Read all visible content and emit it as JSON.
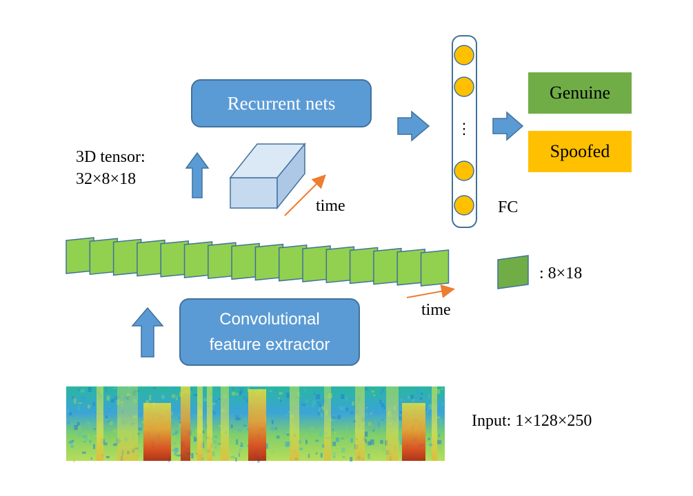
{
  "recurrent_box": {
    "label": "Recurrent nets"
  },
  "conv_box": {
    "label": "Convolutional feature extractor"
  },
  "tensor_label": "3D tensor:\n32×8×18",
  "time_label_top": "time",
  "time_label_bottom": "time",
  "fc_label": "FC",
  "fc_dots": "⋮",
  "feature_map_legend": ": 8×18",
  "input_label": "Input: 1×128×250",
  "outputs": [
    {
      "label": "Genuine",
      "color": "#70ad47"
    },
    {
      "label": "Spoofed",
      "color": "#ffc000"
    }
  ],
  "colors": {
    "box_fill": "#5b9bd5",
    "box_border": "#41719c",
    "arrow": "#5b9bd5",
    "time_arrow": "#ed7d31",
    "feature_map": "#92d050",
    "feature_map_legend": "#70ad47",
    "fc_node": "#ffc000",
    "cube": "#c5d9ef"
  },
  "feature_map_count": 16,
  "icons": [
    "up-arrow-icon",
    "right-arrow-icon",
    "time-arrow-icon"
  ]
}
